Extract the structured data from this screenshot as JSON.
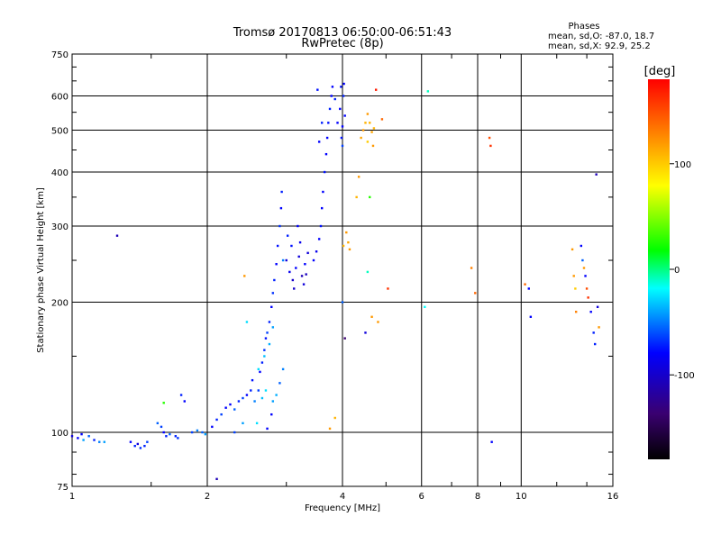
{
  "chart_data": {
    "type": "scatter",
    "title": "Tromsø 20170813 06:50:00-06:51:43",
    "subtitle": "RwPretec (8p)",
    "xlabel": "Frequency [MHz]",
    "ylabel": "Stationary phase Virtual Height [km]",
    "xscale": "log",
    "yscale": "log",
    "xlim": [
      1,
      16
    ],
    "ylim": [
      75,
      750
    ],
    "x_ticks": [
      1,
      2,
      4,
      6,
      8,
      10,
      16
    ],
    "x_tick_labels": [
      "1",
      "2",
      "4",
      "6",
      "8",
      "10",
      "16"
    ],
    "y_ticks": [
      75,
      100,
      200,
      300,
      400,
      500,
      600,
      750
    ],
    "y_tick_labels": [
      "75",
      "100",
      "200",
      "300",
      "400",
      "500",
      "600",
      "750"
    ],
    "grid": true,
    "stats": {
      "heading": "Phases",
      "line1": "mean, sd,O: -87.0, 18.7",
      "line2": "mean, sd,X:  92.9, 25.2"
    },
    "colorbar": {
      "label": "[deg]",
      "range": [
        -180,
        180
      ],
      "ticks": [
        100,
        0,
        -100
      ],
      "tick_labels": [
        "100",
        "0",
        "-100"
      ],
      "colors": [
        "#000000",
        "#3a0070",
        "#0000ff",
        "#00ffff",
        "#00ff00",
        "#ffff00",
        "#ff8000",
        "#ff0000"
      ]
    },
    "points": [
      [
        1.0,
        98,
        -120
      ],
      [
        1.03,
        97,
        -110
      ],
      [
        1.06,
        96,
        -60
      ],
      [
        1.09,
        98,
        -80
      ],
      [
        1.12,
        96,
        -100
      ],
      [
        1.15,
        95,
        -70
      ],
      [
        1.18,
        95,
        -60
      ],
      [
        1.05,
        99,
        -110
      ],
      [
        1.26,
        285,
        -130
      ],
      [
        1.35,
        95,
        -110
      ],
      [
        1.38,
        93,
        -100
      ],
      [
        1.42,
        92,
        -95
      ],
      [
        1.45,
        93,
        -100
      ],
      [
        1.4,
        94,
        -120
      ],
      [
        1.47,
        95,
        -90
      ],
      [
        1.55,
        105,
        -80
      ],
      [
        1.58,
        103,
        -90
      ],
      [
        1.6,
        100,
        -110
      ],
      [
        1.62,
        98,
        -100
      ],
      [
        1.65,
        99,
        -80
      ],
      [
        1.7,
        98,
        -100
      ],
      [
        1.72,
        97,
        -95
      ],
      [
        1.6,
        117,
        20
      ],
      [
        1.75,
        122,
        -100
      ],
      [
        1.78,
        118,
        -110
      ],
      [
        1.85,
        100,
        -90
      ],
      [
        1.9,
        101,
        -70
      ],
      [
        1.95,
        100,
        -80
      ],
      [
        1.98,
        99,
        -60
      ],
      [
        2.05,
        103,
        -110
      ],
      [
        2.1,
        107,
        -100
      ],
      [
        2.15,
        110,
        -90
      ],
      [
        2.2,
        114,
        -110
      ],
      [
        2.25,
        116,
        -110
      ],
      [
        2.3,
        113,
        -80
      ],
      [
        2.35,
        118,
        -100
      ],
      [
        2.4,
        120,
        -90
      ],
      [
        2.45,
        122,
        -110
      ],
      [
        2.5,
        125,
        -100
      ],
      [
        2.52,
        132,
        -105
      ],
      [
        2.55,
        118,
        -70
      ],
      [
        2.6,
        125,
        -90
      ],
      [
        2.62,
        138,
        -110
      ],
      [
        2.65,
        145,
        -100
      ],
      [
        2.68,
        155,
        -95
      ],
      [
        2.7,
        165,
        -105
      ],
      [
        2.72,
        170,
        -90
      ],
      [
        2.75,
        180,
        -100
      ],
      [
        2.78,
        195,
        -110
      ],
      [
        2.8,
        210,
        -95
      ],
      [
        2.82,
        225,
        -100
      ],
      [
        2.85,
        245,
        -110
      ],
      [
        2.87,
        270,
        -105
      ],
      [
        2.9,
        300,
        -95
      ],
      [
        2.92,
        330,
        -110
      ],
      [
        2.93,
        360,
        -100
      ],
      [
        2.95,
        250,
        -70
      ],
      [
        2.65,
        120,
        -50
      ],
      [
        2.7,
        125,
        -40
      ],
      [
        2.8,
        118,
        -60
      ],
      [
        2.85,
        122,
        -55
      ],
      [
        2.6,
        140,
        -40
      ],
      [
        2.68,
        150,
        -50
      ],
      [
        2.75,
        160,
        -55
      ],
      [
        2.8,
        175,
        -60
      ],
      [
        2.78,
        110,
        -110
      ],
      [
        2.9,
        130,
        -80
      ],
      [
        2.95,
        140,
        -70
      ],
      [
        2.58,
        105,
        -40
      ],
      [
        2.72,
        102,
        -110
      ],
      [
        2.3,
        100,
        -90
      ],
      [
        2.4,
        105,
        -60
      ],
      [
        2.1,
        78,
        -130
      ],
      [
        2.42,
        230,
        120
      ],
      [
        2.45,
        180,
        -40
      ],
      [
        3.0,
        250,
        -120
      ],
      [
        3.05,
        235,
        -115
      ],
      [
        3.1,
        225,
        -125
      ],
      [
        3.15,
        240,
        -110
      ],
      [
        3.2,
        255,
        -120
      ],
      [
        3.25,
        230,
        -130
      ],
      [
        3.3,
        245,
        -110
      ],
      [
        3.35,
        260,
        -120
      ],
      [
        3.08,
        270,
        -105
      ],
      [
        3.12,
        215,
        -125
      ],
      [
        3.22,
        275,
        -115
      ],
      [
        3.28,
        220,
        -120
      ],
      [
        3.02,
        285,
        -100
      ],
      [
        3.18,
        300,
        -110
      ],
      [
        3.32,
        232,
        -128
      ],
      [
        3.45,
        250,
        -110
      ],
      [
        3.5,
        262,
        -115
      ],
      [
        3.55,
        280,
        -110
      ],
      [
        3.58,
        300,
        -105
      ],
      [
        3.6,
        330,
        -110
      ],
      [
        3.62,
        360,
        -110
      ],
      [
        3.65,
        400,
        -105
      ],
      [
        3.68,
        440,
        -110
      ],
      [
        3.7,
        480,
        -110
      ],
      [
        3.72,
        520,
        -105
      ],
      [
        3.75,
        560,
        -100
      ],
      [
        3.78,
        600,
        -110
      ],
      [
        3.8,
        630,
        -110
      ],
      [
        3.6,
        520,
        -100
      ],
      [
        3.55,
        470,
        -110
      ],
      [
        3.52,
        620,
        -105
      ],
      [
        3.85,
        590,
        -100
      ],
      [
        3.9,
        520,
        -110
      ],
      [
        3.95,
        560,
        -110
      ],
      [
        3.98,
        480,
        -105
      ],
      [
        4.0,
        510,
        -110
      ],
      [
        4.02,
        600,
        -100
      ],
      [
        4.03,
        640,
        -110
      ],
      [
        4.05,
        540,
        -110
      ],
      [
        4.0,
        460,
        -90
      ],
      [
        3.97,
        630,
        -105
      ],
      [
        3.75,
        102,
        120
      ],
      [
        3.85,
        108,
        110
      ],
      [
        4.0,
        200,
        -80
      ],
      [
        4.05,
        165,
        -150
      ],
      [
        4.02,
        270,
        110
      ],
      [
        4.08,
        290,
        120
      ],
      [
        4.12,
        275,
        115
      ],
      [
        4.15,
        265,
        120
      ],
      [
        4.3,
        350,
        110
      ],
      [
        4.35,
        390,
        120
      ],
      [
        4.4,
        480,
        115
      ],
      [
        4.45,
        500,
        120
      ],
      [
        4.5,
        520,
        110
      ],
      [
        4.55,
        545,
        120
      ],
      [
        4.6,
        520,
        110
      ],
      [
        4.65,
        495,
        115
      ],
      [
        4.7,
        505,
        110
      ],
      [
        4.75,
        620,
        170
      ],
      [
        4.68,
        460,
        120
      ],
      [
        4.55,
        470,
        100
      ],
      [
        4.6,
        350,
        20
      ],
      [
        4.55,
        235,
        -20
      ],
      [
        4.5,
        170,
        -120
      ],
      [
        4.65,
        185,
        120
      ],
      [
        4.8,
        180,
        120
      ],
      [
        4.9,
        530,
        140
      ],
      [
        5.05,
        215,
        160
      ],
      [
        6.2,
        615,
        -20
      ],
      [
        6.1,
        195,
        -30
      ],
      [
        7.75,
        240,
        130
      ],
      [
        7.9,
        210,
        140
      ],
      [
        8.5,
        480,
        150
      ],
      [
        8.55,
        460,
        160
      ],
      [
        8.6,
        95,
        -110
      ],
      [
        10.2,
        220,
        140
      ],
      [
        10.4,
        215,
        -110
      ],
      [
        10.5,
        185,
        -110
      ],
      [
        13.0,
        265,
        120
      ],
      [
        13.1,
        230,
        120
      ],
      [
        13.2,
        215,
        100
      ],
      [
        13.25,
        190,
        130
      ],
      [
        13.6,
        270,
        -110
      ],
      [
        13.7,
        250,
        -80
      ],
      [
        13.8,
        240,
        120
      ],
      [
        13.9,
        230,
        -110
      ],
      [
        14.0,
        215,
        150
      ],
      [
        14.1,
        205,
        160
      ],
      [
        14.3,
        190,
        -110
      ],
      [
        14.5,
        170,
        -100
      ],
      [
        14.6,
        160,
        -100
      ],
      [
        14.7,
        395,
        -130
      ],
      [
        14.8,
        195,
        -120
      ],
      [
        14.9,
        175,
        120
      ]
    ]
  }
}
